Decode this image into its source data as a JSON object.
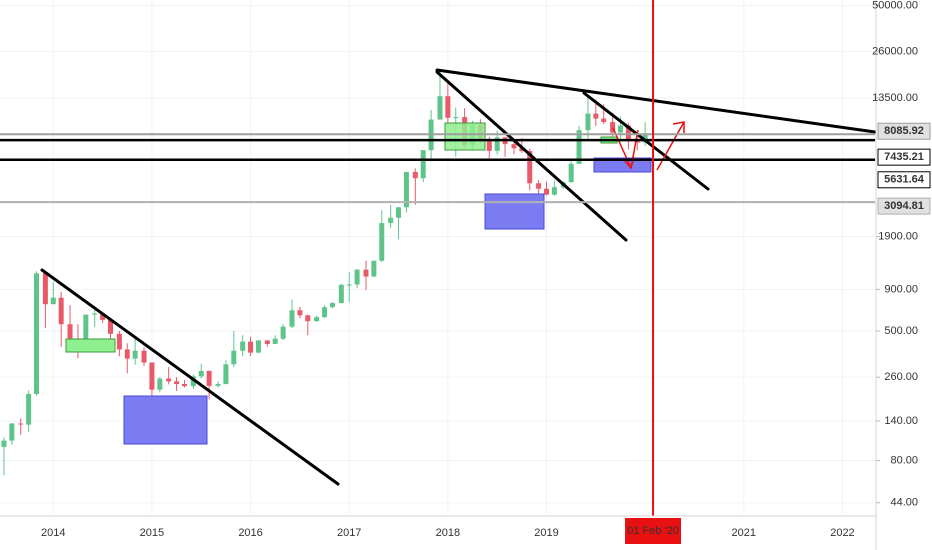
{
  "chart_data": {
    "type": "candlestick",
    "log_scale": true,
    "grid": true,
    "up_color": "#5fc48a",
    "down_color": "#e85a68",
    "x": [
      2013.5,
      2013.58,
      2013.67,
      2013.75,
      2013.83,
      2013.92,
      2014,
      2014.08,
      2014.17,
      2014.25,
      2014.33,
      2014.42,
      2014.5,
      2014.58,
      2014.67,
      2014.75,
      2014.83,
      2014.92,
      2015,
      2015.08,
      2015.17,
      2015.25,
      2015.33,
      2015.42,
      2015.5,
      2015.58,
      2015.67,
      2015.75,
      2015.83,
      2015.92,
      2016,
      2016.08,
      2016.17,
      2016.25,
      2016.33,
      2016.42,
      2016.5,
      2016.58,
      2016.67,
      2016.75,
      2016.83,
      2016.92,
      2017,
      2017.08,
      2017.17,
      2017.25,
      2017.33,
      2017.42,
      2017.5,
      2017.58,
      2017.67,
      2017.75,
      2017.83,
      2017.92,
      2018,
      2018.08,
      2018.17,
      2018.25,
      2018.33,
      2018.42,
      2018.5,
      2018.58,
      2018.67,
      2018.75,
      2018.83,
      2018.92,
      2019,
      2019.08,
      2019.17,
      2019.25,
      2019.33,
      2019.42,
      2019.5,
      2019.58,
      2019.67,
      2019.75,
      2019.83,
      2019.92,
      2020
    ],
    "open": [
      97,
      106,
      135,
      133,
      205,
      1130,
      730,
      800,
      550,
      450,
      445,
      630,
      640,
      585,
      480,
      385,
      338,
      378,
      320,
      218,
      255,
      245,
      236,
      229,
      263,
      284,
      230,
      236,
      312,
      378,
      430,
      368,
      437,
      416,
      448,
      531,
      670,
      624,
      574,
      608,
      700,
      743,
      960,
      965,
      1190,
      1080,
      1350,
      2300,
      2480,
      2875,
      4740,
      4340,
      6450,
      9950,
      13850,
      10200,
      10300,
      6900,
      9240,
      7500,
      6390,
      7730,
      7030,
      6630,
      6370,
      4040,
      3740,
      3440,
      3820,
      4100,
      5320,
      8560,
      10820,
      10090,
      9600,
      8290,
      9150,
      7540,
      7190
    ],
    "high": [
      111,
      136,
      145,
      215,
      1163,
      1160,
      1000,
      870,
      720,
      550,
      630,
      680,
      650,
      600,
      500,
      420,
      460,
      400,
      320,
      260,
      300,
      260,
      250,
      270,
      315,
      285,
      245,
      330,
      500,
      470,
      460,
      440,
      440,
      470,
      550,
      780,
      705,
      630,
      620,
      720,
      750,
      975,
      1150,
      1200,
      1350,
      1350,
      2760,
      2980,
      2900,
      4750,
      4980,
      6450,
      11400,
      19700,
      17200,
      11800,
      11700,
      9750,
      9990,
      7780,
      8500,
      7760,
      7410,
      7680,
      6580,
      4240,
      4140,
      4200,
      4120,
      5600,
      9090,
      13880,
      13200,
      12330,
      10940,
      10380,
      9520,
      7750,
      9580
    ],
    "low": [
      65,
      100,
      115,
      120,
      200,
      520,
      730,
      400,
      440,
      340,
      430,
      530,
      560,
      440,
      350,
      275,
      310,
      305,
      165,
      210,
      235,
      214,
      225,
      220,
      255,
      190,
      225,
      235,
      300,
      350,
      350,
      365,
      400,
      415,
      440,
      520,
      600,
      470,
      570,
      600,
      690,
      740,
      750,
      915,
      890,
      1070,
      1330,
      2150,
      1830,
      2670,
      2980,
      4100,
      5500,
      9950,
      9000,
      5900,
      6600,
      6400,
      7060,
      5750,
      6070,
      5880,
      6100,
      6200,
      3650,
      3150,
      3400,
      3380,
      3730,
      4080,
      5320,
      7450,
      9080,
      9350,
      7740,
      7300,
      6520,
      6440,
      6860
    ],
    "close": [
      106,
      135,
      133,
      205,
      1130,
      730,
      800,
      550,
      450,
      445,
      630,
      640,
      585,
      480,
      385,
      338,
      378,
      320,
      218,
      255,
      245,
      236,
      229,
      263,
      284,
      230,
      236,
      312,
      378,
      430,
      368,
      437,
      416,
      448,
      531,
      670,
      624,
      574,
      608,
      700,
      743,
      960,
      965,
      1190,
      1080,
      1350,
      2300,
      2480,
      2875,
      4740,
      4340,
      6450,
      9950,
      13850,
      10200,
      10300,
      6900,
      9240,
      7500,
      6390,
      7730,
      7030,
      6630,
      6370,
      4040,
      3740,
      3440,
      3820,
      4100,
      5320,
      8560,
      10820,
      10090,
      9600,
      8290,
      9150,
      7540,
      7190,
      8085.92
    ],
    "xlim": [
      2013.46,
      2022.33
    ],
    "ylim": [
      37,
      54000
    ],
    "xticks": [
      2014,
      2015,
      2016,
      2017,
      2018,
      2019,
      2021,
      2022
    ],
    "yticks": [
      {
        "value": 50000,
        "label": "50000.00"
      },
      {
        "value": 26000,
        "label": "26000.00"
      },
      {
        "value": 13500,
        "label": "13500.00"
      },
      {
        "value": 1900,
        "label": "1900.00"
      },
      {
        "value": 900,
        "label": "900.00"
      },
      {
        "value": 500,
        "label": "500.00"
      },
      {
        "value": 260,
        "label": "260.00"
      },
      {
        "value": 140,
        "label": "140.00"
      },
      {
        "value": 80,
        "label": "80.00"
      },
      {
        "value": 44,
        "label": "44.00"
      }
    ],
    "price_lines": [
      {
        "value": 8085.92,
        "color": "#9e9e9e"
      },
      {
        "value": 7435.21,
        "color": "#000000"
      },
      {
        "value": 5631.64,
        "color": "#000000"
      },
      {
        "value": 3094.81,
        "color": "#b0b0b0"
      }
    ],
    "cursor": {
      "x": 2020.08,
      "label": "01 Feb '20",
      "color": "#e81010"
    }
  }
}
